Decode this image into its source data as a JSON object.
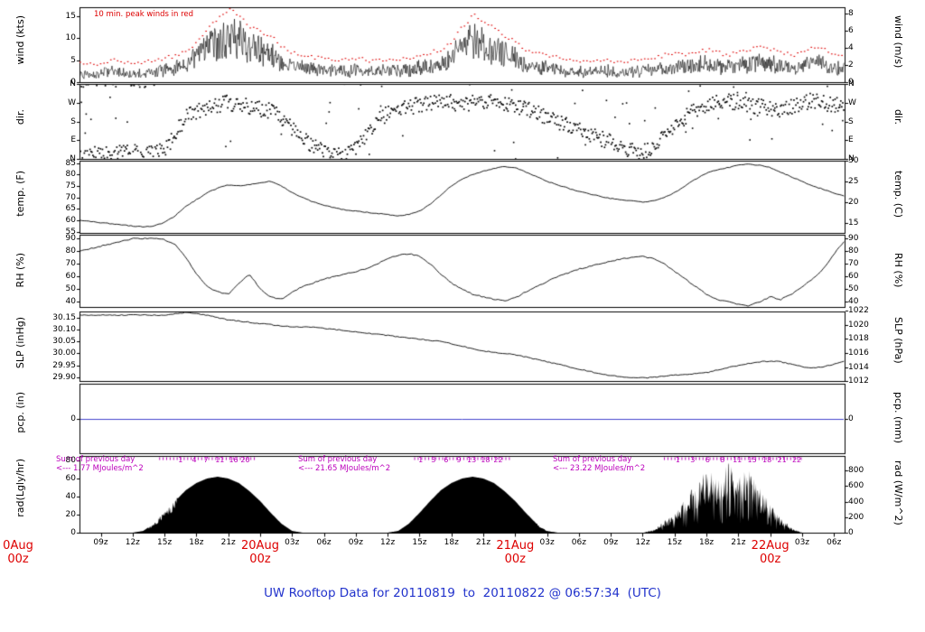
{
  "title": "UW Rooftop Data for 20110819  to  20110822 @ 06:57:34  (UTC)",
  "wind_note": "10 min. peak winds in red",
  "colors": {
    "accent_red": "#dd0000",
    "annotation_purple": "#bb00bb",
    "title_blue": "#2233cc",
    "pcp_blue": "#4444cc",
    "trace_black": "#000000"
  },
  "x_axis": {
    "range_hours": [
      0,
      72
    ],
    "partial_left_label": "0Aug\n00z",
    "tick_labels": [
      {
        "hour": 2,
        "label": "09z"
      },
      {
        "hour": 5,
        "label": "12z"
      },
      {
        "hour": 8,
        "label": "15z"
      },
      {
        "hour": 11,
        "label": "18z"
      },
      {
        "hour": 14,
        "label": "21z"
      },
      {
        "hour": 20,
        "label": "03z"
      },
      {
        "hour": 23,
        "label": "06z"
      },
      {
        "hour": 26,
        "label": "09z"
      },
      {
        "hour": 29,
        "label": "12z"
      },
      {
        "hour": 32,
        "label": "15z"
      },
      {
        "hour": 35,
        "label": "18z"
      },
      {
        "hour": 38,
        "label": "21z"
      },
      {
        "hour": 44,
        "label": "03z"
      },
      {
        "hour": 47,
        "label": "06z"
      },
      {
        "hour": 50,
        "label": "09z"
      },
      {
        "hour": 53,
        "label": "12z"
      },
      {
        "hour": 56,
        "label": "15z"
      },
      {
        "hour": 59,
        "label": "18z"
      },
      {
        "hour": 62,
        "label": "21z"
      },
      {
        "hour": 68,
        "label": "03z"
      },
      {
        "hour": 71,
        "label": "06z"
      }
    ],
    "date_labels": [
      {
        "hour": 17,
        "line1": "20Aug",
        "line2": "00z"
      },
      {
        "hour": 41,
        "line1": "21Aug",
        "line2": "00z"
      },
      {
        "hour": 65,
        "line1": "22Aug",
        "line2": "00z"
      }
    ]
  },
  "chart_data": {
    "type": "line",
    "subtype": "meteogram-multipanel",
    "x_unit": "hours from plot start (approx 07z 19 Aug 2011), hourly samples",
    "panels": [
      {
        "id": "wind",
        "plot": "noisy-line-with-red-peaks",
        "ylabel_left": "wind (kts)",
        "ylabel_right": "wind (m/s)",
        "ylim": [
          0,
          17
        ],
        "left_ticks": [
          {
            "v": 0,
            "label": "0"
          },
          {
            "v": 5,
            "label": "5"
          },
          {
            "v": 10,
            "label": "10"
          },
          {
            "v": 15,
            "label": "15"
          }
        ],
        "right_ticks": [
          {
            "v": 0,
            "label": "0"
          },
          {
            "v": 3.89,
            "label": "2"
          },
          {
            "v": 7.78,
            "label": "4"
          },
          {
            "v": 11.66,
            "label": "6"
          },
          {
            "v": 15.55,
            "label": "8"
          }
        ],
        "mean_kts": [
          2.5,
          2.2,
          2.6,
          3.0,
          2.6,
          2.2,
          2.5,
          3.0,
          3.4,
          4.0,
          5.0,
          6.5,
          9.0,
          11.0,
          12.5,
          11.5,
          9.5,
          8.5,
          7.5,
          5.5,
          4.5,
          4.0,
          3.5,
          3.5,
          3.0,
          3.0,
          3.4,
          3.0,
          3.0,
          3.4,
          3.0,
          3.5,
          4.0,
          4.5,
          5.0,
          6.5,
          9.5,
          11.5,
          10.5,
          9.0,
          7.5,
          6.5,
          5.0,
          4.5,
          4.0,
          3.5,
          3.0,
          3.0,
          2.6,
          3.0,
          3.0,
          2.6,
          3.0,
          3.0,
          3.5,
          4.0,
          4.5,
          4.0,
          4.5,
          5.0,
          4.5,
          4.0,
          4.5,
          5.0,
          5.5,
          5.0,
          4.5,
          4.0,
          4.5,
          5.5,
          5.0,
          4.0,
          3.5
        ]
      },
      {
        "id": "dir",
        "plot": "scatter",
        "ylabel_left": "dir.",
        "ylabel_right": "dir.",
        "ylim": [
          0,
          360
        ],
        "left_ticks": [
          {
            "v": 0,
            "label": "N"
          },
          {
            "v": 90,
            "label": "E"
          },
          {
            "v": 180,
            "label": "S"
          },
          {
            "v": 270,
            "label": "W"
          },
          {
            "v": 360,
            "label": "N"
          }
        ],
        "right_ticks": [
          {
            "v": 0,
            "label": "N"
          },
          {
            "v": 90,
            "label": "E"
          },
          {
            "v": 180,
            "label": "S"
          },
          {
            "v": 270,
            "label": "W"
          },
          {
            "v": 360,
            "label": "N"
          }
        ],
        "mean_deg": [
          20,
          20,
          25,
          20,
          30,
          25,
          20,
          30,
          40,
          120,
          200,
          230,
          250,
          260,
          270,
          260,
          250,
          240,
          230,
          200,
          150,
          100,
          60,
          30,
          20,
          30,
          60,
          120,
          180,
          220,
          240,
          250,
          260,
          270,
          280,
          270,
          260,
          270,
          280,
          270,
          260,
          250,
          240,
          220,
          200,
          180,
          160,
          140,
          120,
          100,
          80,
          60,
          40,
          30,
          60,
          100,
          150,
          200,
          240,
          260,
          270,
          280,
          270,
          260,
          250,
          240,
          230,
          250,
          270,
          280,
          270,
          260,
          250
        ]
      },
      {
        "id": "temp",
        "plot": "line",
        "ylabel_left": "temp. (F)",
        "ylabel_right": "temp. (C)",
        "ylim": [
          54.5,
          86
        ],
        "left_ticks": [
          {
            "v": 55,
            "label": "55"
          },
          {
            "v": 60,
            "label": "60"
          },
          {
            "v": 65,
            "label": "65"
          },
          {
            "v": 70,
            "label": "70"
          },
          {
            "v": 75,
            "label": "75"
          },
          {
            "v": 80,
            "label": "80"
          },
          {
            "v": 85,
            "label": "85"
          }
        ],
        "right_ticks": [
          {
            "v": 59,
            "label": "15"
          },
          {
            "v": 68,
            "label": "20"
          },
          {
            "v": 77,
            "label": "25"
          },
          {
            "v": 86,
            "label": "30"
          }
        ],
        "values_f": [
          60,
          59.5,
          59,
          58.5,
          58,
          57.5,
          57.2,
          57.5,
          59,
          62,
          66,
          69,
          72,
          74,
          75.5,
          75,
          75.5,
          76.5,
          77,
          75,
          72,
          70,
          68,
          66.5,
          65.5,
          64.5,
          64,
          63.5,
          63,
          62.5,
          62,
          62.5,
          64,
          67,
          71,
          75,
          78,
          80,
          81.5,
          82.5,
          83.5,
          83,
          81,
          79,
          77,
          75.5,
          74,
          72.5,
          71.5,
          70.5,
          69.5,
          69,
          68.5,
          68,
          68.5,
          70,
          72,
          75,
          78,
          80.5,
          82,
          83,
          84,
          84.5,
          84,
          83,
          81,
          79,
          77,
          75,
          73.5,
          72,
          70.5
        ]
      },
      {
        "id": "rh",
        "plot": "line",
        "ylabel_left": "RH (%)",
        "ylabel_right": "RH (%)",
        "ylim": [
          36,
          93
        ],
        "left_ticks": [
          {
            "v": 40,
            "label": "40"
          },
          {
            "v": 50,
            "label": "50"
          },
          {
            "v": 60,
            "label": "60"
          },
          {
            "v": 70,
            "label": "70"
          },
          {
            "v": 80,
            "label": "80"
          },
          {
            "v": 90,
            "label": "90"
          }
        ],
        "right_ticks": [
          {
            "v": 40,
            "label": "40"
          },
          {
            "v": 50,
            "label": "50"
          },
          {
            "v": 60,
            "label": "60"
          },
          {
            "v": 70,
            "label": "70"
          },
          {
            "v": 80,
            "label": "80"
          },
          {
            "v": 90,
            "label": "90"
          }
        ],
        "values_pct": [
          80,
          82,
          84,
          86,
          88,
          90,
          90,
          90,
          89,
          85,
          75,
          62,
          52,
          48,
          46,
          55,
          62,
          50,
          44,
          42,
          48,
          52,
          55,
          58,
          60,
          62,
          64,
          66,
          70,
          74,
          77,
          78,
          76,
          70,
          62,
          55,
          50,
          46,
          44,
          42,
          41,
          43,
          48,
          52,
          56,
          60,
          63,
          66,
          68,
          70,
          72,
          74,
          75,
          76,
          74,
          70,
          64,
          58,
          52,
          46,
          42,
          40,
          38,
          37,
          40,
          44,
          42,
          46,
          52,
          58,
          66,
          78,
          88
        ]
      },
      {
        "id": "slp",
        "plot": "line",
        "ylabel_left": "SLP (inHg)",
        "ylabel_right": "SLP (hPa)",
        "ylim": [
          29.885,
          30.175
        ],
        "left_ticks": [
          {
            "v": 29.9,
            "label": "29.90"
          },
          {
            "v": 29.95,
            "label": "29.95"
          },
          {
            "v": 30.0,
            "label": "30.00"
          },
          {
            "v": 30.05,
            "label": "30.05"
          },
          {
            "v": 30.1,
            "label": "30.10"
          },
          {
            "v": 30.15,
            "label": "30.15"
          }
        ],
        "right_ticks": [
          {
            "v": 29.884,
            "label": "1012"
          },
          {
            "v": 29.943,
            "label": "1014"
          },
          {
            "v": 30.002,
            "label": "1016"
          },
          {
            "v": 30.061,
            "label": "1018"
          },
          {
            "v": 30.12,
            "label": "1020"
          },
          {
            "v": 30.179,
            "label": "1022"
          }
        ],
        "values_inhg": [
          30.16,
          30.16,
          30.16,
          30.16,
          30.16,
          30.16,
          30.16,
          30.16,
          30.16,
          30.165,
          30.17,
          30.165,
          30.16,
          30.15,
          30.14,
          30.135,
          30.13,
          30.125,
          30.12,
          30.115,
          30.11,
          30.11,
          30.11,
          30.105,
          30.1,
          30.095,
          30.09,
          30.085,
          30.08,
          30.075,
          30.07,
          30.065,
          30.06,
          30.055,
          30.05,
          30.04,
          30.03,
          30.02,
          30.01,
          30.005,
          30.0,
          29.995,
          29.985,
          29.975,
          29.965,
          29.955,
          29.945,
          29.935,
          29.925,
          29.915,
          29.908,
          29.902,
          29.9,
          29.898,
          29.9,
          29.905,
          29.91,
          29.912,
          29.915,
          29.92,
          29.93,
          29.94,
          29.95,
          29.958,
          29.965,
          29.968,
          29.965,
          29.955,
          29.945,
          29.94,
          29.945,
          29.955,
          29.97
        ]
      },
      {
        "id": "pcp",
        "plot": "zero-line",
        "ylabel_left": "pcp. (in)",
        "ylabel_right": "pcp. (mm)",
        "ylim": [
          -1,
          1
        ],
        "left_ticks": [
          {
            "v": 0,
            "label": "0"
          }
        ],
        "right_ticks": [
          {
            "v": 0,
            "label": "0"
          }
        ],
        "flat_value_in": 0
      },
      {
        "id": "rad",
        "plot": "filled-area",
        "ylabel_left": "rad(Lgly/hr)",
        "ylabel_right": "rad (W/m^2)",
        "ylim": [
          0,
          85
        ],
        "left_ticks": [
          {
            "v": 0,
            "label": "0"
          },
          {
            "v": 20,
            "label": "20"
          },
          {
            "v": 40,
            "label": "40"
          },
          {
            "v": 60,
            "label": "60"
          },
          {
            "v": 80,
            "label": "80"
          }
        ],
        "right_ticks": [
          {
            "v": 0,
            "label": "0"
          },
          {
            "v": 17.2,
            "label": "200"
          },
          {
            "v": 34.4,
            "label": "400"
          },
          {
            "v": 51.6,
            "label": "600"
          },
          {
            "v": 68.8,
            "label": "800"
          }
        ],
        "values_lgly": [
          0,
          0,
          0,
          0,
          0,
          0,
          2,
          10,
          22,
          35,
          47,
          55,
          60,
          62,
          60,
          55,
          46,
          35,
          22,
          10,
          2,
          0,
          0,
          0,
          0,
          0,
          0,
          0,
          0,
          0,
          2,
          10,
          22,
          35,
          47,
          55,
          60,
          62,
          60,
          55,
          46,
          35,
          22,
          10,
          2,
          0,
          0,
          0,
          0,
          0,
          0,
          0,
          0,
          0,
          3,
          12,
          22,
          38,
          52,
          68,
          60,
          75,
          62,
          70,
          48,
          32,
          16,
          5,
          0,
          0,
          0,
          0,
          0
        ]
      }
    ],
    "rad_annotations": {
      "sums": [
        {
          "text1": "Sum of previous day",
          "text2": "<--- 1.77 MJoules/m^2"
        },
        {
          "text1": "Sum of previous day",
          "text2": "<--- 21.65 MJoules/m^2"
        },
        {
          "text1": "Sum of previous day",
          "text2": "<--- 23.22 MJoules/m^2"
        }
      ],
      "dash_ranges": [
        [
          7.5,
          16.5
        ],
        [
          31.5,
          40.5
        ],
        [
          55,
          68
        ]
      ],
      "cumulative": [
        {
          "points": [
            {
              "hour": 9.5,
              "value": 1
            },
            {
              "hour": 10.8,
              "value": 4
            },
            {
              "hour": 11.9,
              "value": 7
            },
            {
              "hour": 13.2,
              "value": 11
            },
            {
              "hour": 14.5,
              "value": 16
            },
            {
              "hour": 15.6,
              "value": 20
            }
          ]
        },
        {
          "points": [
            {
              "hour": 32.1,
              "value": 1
            },
            {
              "hour": 33.3,
              "value": 3
            },
            {
              "hour": 34.5,
              "value": 6
            },
            {
              "hour": 35.7,
              "value": 9
            },
            {
              "hour": 36.9,
              "value": 13
            },
            {
              "hour": 38.2,
              "value": 18
            },
            {
              "hour": 39.4,
              "value": 22
            }
          ]
        },
        {
          "points": [
            {
              "hour": 56.3,
              "value": 1
            },
            {
              "hour": 57.7,
              "value": 3
            },
            {
              "hour": 59.1,
              "value": 6
            },
            {
              "hour": 60.5,
              "value": 8
            },
            {
              "hour": 61.9,
              "value": 11
            },
            {
              "hour": 63.3,
              "value": 15
            },
            {
              "hour": 64.7,
              "value": 18
            },
            {
              "hour": 66.1,
              "value": 21
            },
            {
              "hour": 67.5,
              "value": 22
            }
          ]
        }
      ]
    }
  }
}
